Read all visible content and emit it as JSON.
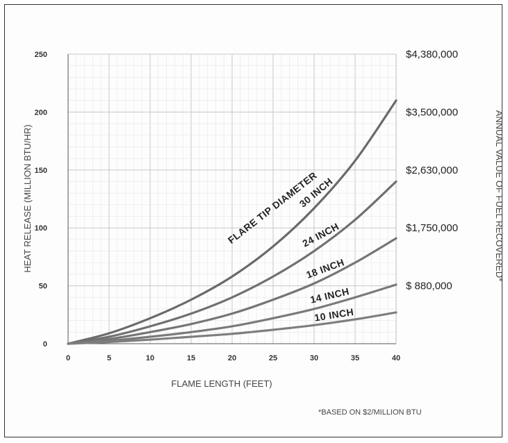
{
  "chart_data": {
    "type": "line",
    "xlabel": "FLAME LENGTH (FEET)",
    "ylabel": "HEAT RELEASE (MILLION BTU/HR)",
    "y2label": "ANNUAL VALUE OF FUEL RECOVERED*",
    "footnote": "*BASED ON $2/MILLION BTU",
    "curve_group_label": "FLARE TIP DIAMETER",
    "xlim": [
      0,
      40
    ],
    "ylim": [
      0,
      250
    ],
    "x_ticks": [
      "0",
      "5",
      "10",
      "15",
      "20",
      "25",
      "30",
      "35",
      "40"
    ],
    "y_ticks": [
      "0",
      "50",
      "100",
      "150",
      "200",
      "250"
    ],
    "y2_ticks": [
      {
        "value": 50,
        "label": "$  880,000"
      },
      {
        "value": 100,
        "label": "$1,750,000"
      },
      {
        "value": 150,
        "label": "$2,630,000"
      },
      {
        "value": 200,
        "label": "$3,500,000"
      },
      {
        "value": 250,
        "label": "$4,380,000"
      }
    ],
    "grid": true,
    "x": [
      0,
      5,
      10,
      15,
      20,
      25,
      30,
      35,
      40
    ],
    "series": [
      {
        "name": "30 INCH",
        "values": [
          0,
          9,
          22,
          38,
          58,
          84,
          117,
          158,
          210
        ]
      },
      {
        "name": "24 INCH",
        "values": [
          0,
          6,
          15,
          26,
          40,
          58,
          80,
          107,
          140
        ]
      },
      {
        "name": "18 INCH",
        "values": [
          0,
          4,
          10,
          17,
          26,
          38,
          52,
          70,
          91
        ]
      },
      {
        "name": "14 INCH",
        "values": [
          0,
          2.5,
          6,
          10,
          15,
          22,
          30,
          40,
          51
        ]
      },
      {
        "name": "10 INCH",
        "values": [
          0,
          1.5,
          3.5,
          6,
          8.5,
          12,
          16,
          21,
          27
        ]
      }
    ]
  }
}
